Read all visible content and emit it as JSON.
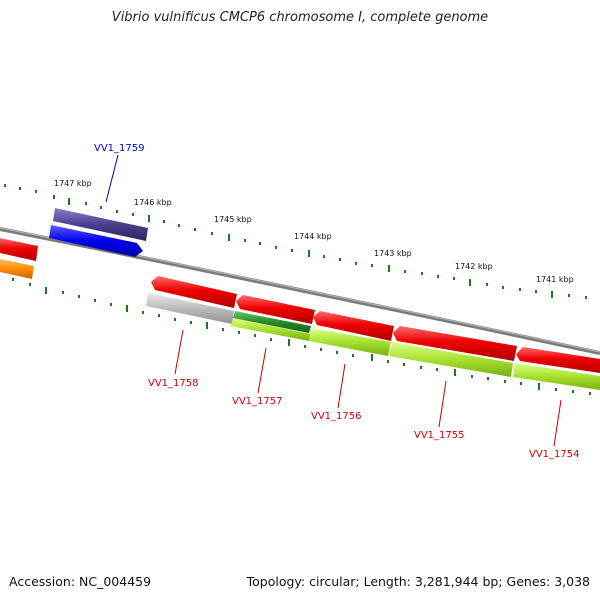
{
  "title": "Vibrio vulnificus CMCP6 chromosome I, complete genome",
  "footer": {
    "accession": "Accession: NC_004459",
    "topology": "Topology: circular; Length: 3,281,944 bp; Genes: 3,038"
  },
  "colors": {
    "backbone": "#808080",
    "tick": "#1a7a1a",
    "cds_forward_label": "#0000cc",
    "cds_reverse_label": "#cc0000",
    "cds_red": "#e60000",
    "cds_blue": "#0000ee",
    "cds_purple": "#4a3f8f",
    "lime": "#99dd22",
    "dark_green": "#2a8a2a",
    "grey": "#aaaaaa",
    "orange": "#ff8800"
  },
  "scale_labels": [
    "1747 kbp",
    "1746 kbp",
    "1745 kbp",
    "1744 kbp",
    "1743 kbp",
    "1742 kbp",
    "1741 kbp"
  ],
  "gene_labels": [
    {
      "text": "VV1_1759",
      "strand": "forward"
    },
    {
      "text": "VV1_1758",
      "strand": "reverse"
    },
    {
      "text": "VV1_1757",
      "strand": "reverse"
    },
    {
      "text": "VV1_1756",
      "strand": "reverse"
    },
    {
      "text": "VV1_1755",
      "strand": "reverse"
    },
    {
      "text": "VV1_1754",
      "strand": "reverse"
    }
  ]
}
